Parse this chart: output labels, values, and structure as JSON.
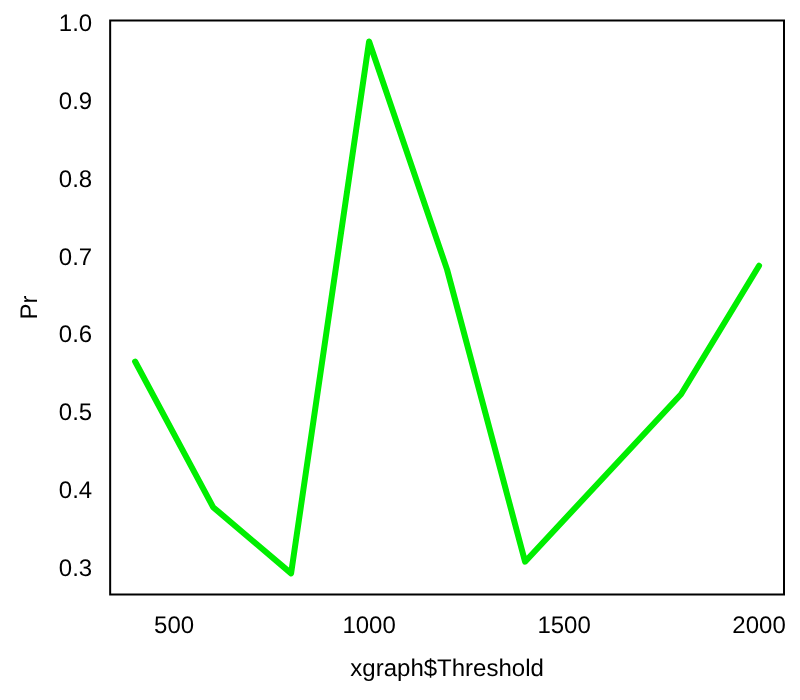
{
  "chart_data": {
    "type": "line",
    "xlabel": "xgraph$Threshold",
    "ylabel": "Pr",
    "x": [
      400,
      600,
      800,
      1000,
      1200,
      1400,
      1800,
      2000
    ],
    "series": [
      {
        "color": "#00ee00",
        "values": [
          0.567,
          0.38,
          0.295,
          0.978,
          0.685,
          0.31,
          0.525,
          0.69
        ]
      }
    ],
    "xlim": [
      336,
      2064
    ],
    "ylim": [
      0.268,
      1.005
    ],
    "xticks": [
      500,
      1000,
      1500,
      2000
    ],
    "yticks": [
      {
        "value": 0.3,
        "label": "0.3"
      },
      {
        "value": 0.4,
        "label": "0.4"
      },
      {
        "value": 0.5,
        "label": "0.5"
      },
      {
        "value": 0.6,
        "label": "0.6"
      },
      {
        "value": 0.7,
        "label": "0.7"
      },
      {
        "value": 0.8,
        "label": "0.8"
      },
      {
        "value": 0.9,
        "label": "0.9"
      },
      {
        "value": 1.0,
        "label": "1.0"
      }
    ],
    "grid": false,
    "legend": false,
    "marker": "none",
    "line_style": "solid"
  }
}
